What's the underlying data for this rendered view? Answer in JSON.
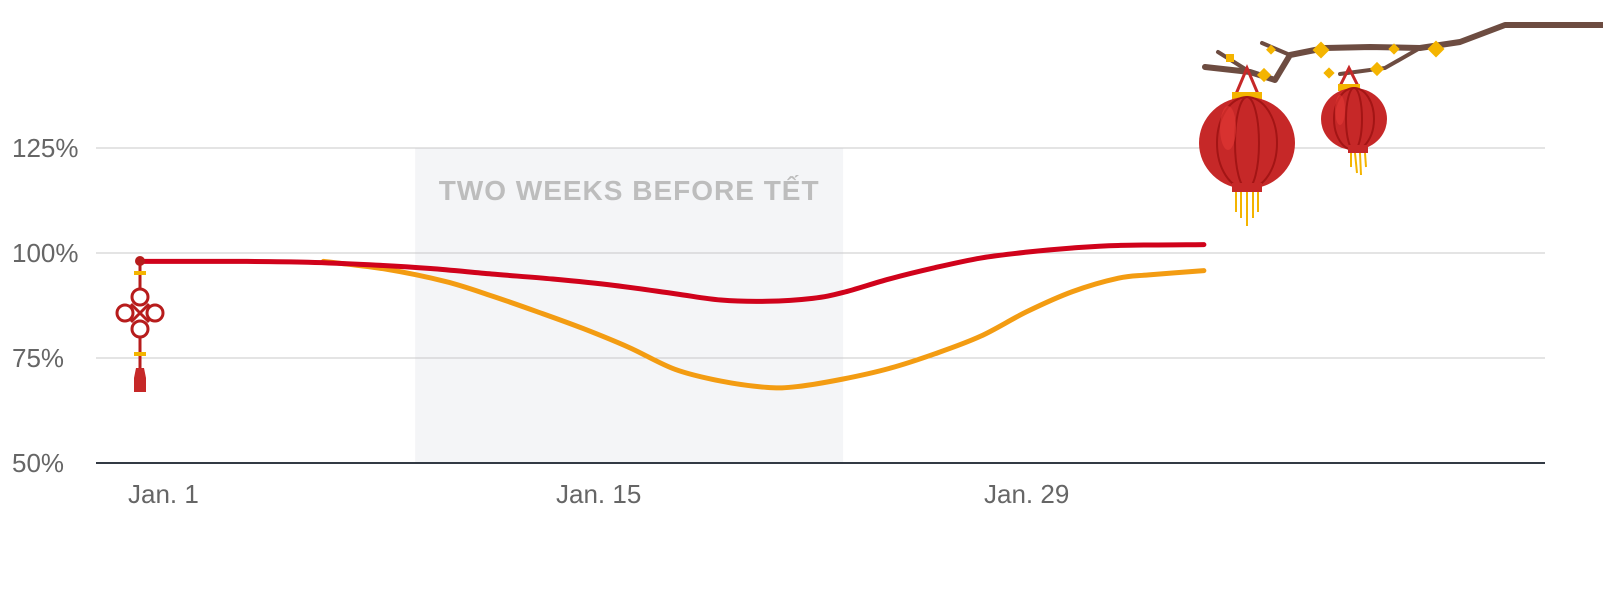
{
  "chart_data": {
    "type": "line",
    "title": "",
    "xlabel": "",
    "ylabel": "",
    "x_tick_labels": [
      "Jan. 1",
      "Jan. 15",
      "Jan. 29"
    ],
    "x_tick_days": [
      1,
      15,
      29
    ],
    "xlim": [
      1,
      35.8
    ],
    "y_tick_labels": [
      "125%",
      "100%",
      "75%",
      "50%"
    ],
    "y_tick_values": [
      125,
      100,
      75,
      50
    ],
    "ylim": [
      50,
      125
    ],
    "grid": true,
    "legend": "none",
    "series": [
      {
        "color": "#d0021b",
        "points": [
          [
            1,
            98
          ],
          [
            4.5,
            98
          ],
          [
            6.5,
            97.8
          ],
          [
            8.5,
            97.2
          ],
          [
            10.5,
            96.3
          ],
          [
            12.5,
            95
          ],
          [
            14.5,
            93.8
          ],
          [
            16.5,
            92.3
          ],
          [
            18.5,
            90.3
          ],
          [
            20,
            88.8
          ],
          [
            21.5,
            88.5
          ],
          [
            23,
            89.2
          ],
          [
            24,
            90.6
          ],
          [
            25.5,
            93.8
          ],
          [
            27,
            96.5
          ],
          [
            28.5,
            98.8
          ],
          [
            30,
            100.2
          ],
          [
            31.5,
            101.2
          ],
          [
            33,
            101.8
          ],
          [
            35.8,
            102
          ]
        ]
      },
      {
        "color": "#f39c12",
        "points": [
          [
            7,
            98
          ],
          [
            9,
            96.2
          ],
          [
            11,
            93.2
          ],
          [
            12.5,
            89.8
          ],
          [
            14,
            86
          ],
          [
            15.5,
            82
          ],
          [
            17,
            77.5
          ],
          [
            18.5,
            72.3
          ],
          [
            20,
            69.5
          ],
          [
            21.5,
            68
          ],
          [
            22.5,
            68.2
          ],
          [
            24,
            70
          ],
          [
            25.5,
            72.5
          ],
          [
            27,
            76
          ],
          [
            28.5,
            80.2
          ],
          [
            30,
            86
          ],
          [
            31.5,
            90.8
          ],
          [
            33,
            94
          ],
          [
            34,
            94.8
          ],
          [
            35.8,
            95.8
          ]
        ]
      }
    ],
    "annotations": [
      {
        "label": "TWO WEEKS BEFORE TẾT",
        "x_start": 10,
        "x_end": 24,
        "shade_color": "#f4f5f7",
        "label_color": "#bdbdbd"
      }
    ]
  },
  "decorations": {
    "knot_color": "#b71c1c",
    "knot_accent": "#f4b400",
    "lantern_color": "#c62828",
    "lantern_trim": "#e53935",
    "lantern_gold": "#f4b400",
    "branch_color": "#6d4c41",
    "flower_color": "#f4b400"
  }
}
